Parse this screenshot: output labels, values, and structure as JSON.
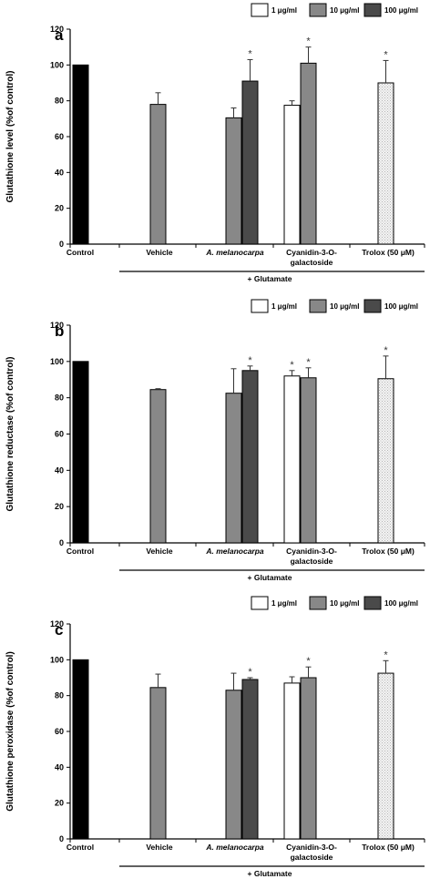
{
  "chart_data": [
    {
      "type": "bar",
      "panel_label": "a",
      "ylabel": "Glutathione level  (%of control)",
      "ylim": [
        0,
        120
      ],
      "yticks": [
        0,
        20,
        40,
        60,
        80,
        100,
        120
      ],
      "categories": [
        "Control",
        "Vehicle",
        "A. melanocarpa",
        "Cyanidin-3-O-galactoside",
        "Trolox (50 μM)"
      ],
      "category_labels": [
        [
          "Control"
        ],
        [
          "Vehicle"
        ],
        [
          "A. melanocarpa"
        ],
        [
          "Cyanidin-3-O-",
          "galactoside"
        ],
        [
          "Trolox (50 μM)"
        ]
      ],
      "group_label": "+ Glutamate",
      "legend": [
        "1 μg/ml",
        "10 μg/ml",
        "100 μg/ml"
      ],
      "legend_position": "top-right",
      "bars": [
        {
          "category": "Control",
          "style": "control",
          "value": 100,
          "error": 0,
          "significant": false
        },
        {
          "category": "Vehicle",
          "style": "10",
          "value": 78,
          "error": 6.5,
          "significant": false
        },
        {
          "category": "A. melanocarpa",
          "style": "10",
          "value": 70.5,
          "error": 5.5,
          "significant": false
        },
        {
          "category": "A. melanocarpa",
          "style": "100",
          "value": 91,
          "error": 12,
          "significant": true
        },
        {
          "category": "Cyanidin-3-O-galactoside",
          "style": "1",
          "value": 77.5,
          "error": 2.5,
          "significant": false
        },
        {
          "category": "Cyanidin-3-O-galactoside",
          "style": "10",
          "value": 101,
          "error": 9,
          "significant": true
        },
        {
          "category": "Trolox (50 μM)",
          "style": "trolox",
          "value": 90,
          "error": 12.5,
          "significant": true
        }
      ]
    },
    {
      "type": "bar",
      "panel_label": "b",
      "ylabel": "Glutathione reductase (%of control)",
      "ylim": [
        0,
        120
      ],
      "yticks": [
        0,
        20,
        40,
        60,
        80,
        100,
        120
      ],
      "categories": [
        "Control",
        "Vehicle",
        "A. melanocarpa",
        "Cyanidin-3-O-galactoside",
        "Trolox (50 μM)"
      ],
      "category_labels": [
        [
          "Control"
        ],
        [
          "Vehicle"
        ],
        [
          "A. melanocarpa"
        ],
        [
          "Cyanidin-3-O-",
          "galactoside"
        ],
        [
          "Trolox (50 μM)"
        ]
      ],
      "group_label": "+ Glutamate",
      "legend": [
        "1 μg/ml",
        "10 μg/ml",
        "100 μg/ml"
      ],
      "legend_position": "top-right",
      "bars": [
        {
          "category": "Control",
          "style": "control",
          "value": 100,
          "error": 0,
          "significant": false
        },
        {
          "category": "Vehicle",
          "style": "10",
          "value": 84.5,
          "error": 0.5,
          "significant": false
        },
        {
          "category": "A. melanocarpa",
          "style": "10",
          "value": 82.5,
          "error": 13.5,
          "significant": false
        },
        {
          "category": "A. melanocarpa",
          "style": "100",
          "value": 95,
          "error": 2.5,
          "significant": true
        },
        {
          "category": "Cyanidin-3-O-galactoside",
          "style": "1",
          "value": 92,
          "error": 3,
          "significant": true
        },
        {
          "category": "Cyanidin-3-O-galactoside",
          "style": "10",
          "value": 91,
          "error": 5.5,
          "significant": true
        },
        {
          "category": "Trolox (50 μM)",
          "style": "trolox",
          "value": 90.5,
          "error": 12.5,
          "significant": true
        }
      ]
    },
    {
      "type": "bar",
      "panel_label": "c",
      "ylabel": "Glutathione peroxidase (%of control)",
      "ylim": [
        0,
        120
      ],
      "yticks": [
        0,
        20,
        40,
        60,
        80,
        100,
        120
      ],
      "categories": [
        "Control",
        "Vehicle",
        "A. melanocarpa",
        "Cyanidin-3-O-galactoside",
        "Trolox (50 μM)"
      ],
      "category_labels": [
        [
          "Control"
        ],
        [
          "Vehicle"
        ],
        [
          "A. melanocarpa"
        ],
        [
          "Cyanidin-3-O-",
          "galactoside"
        ],
        [
          "Trolox (50 μM)"
        ]
      ],
      "group_label": "+ Glutamate",
      "legend": [
        "1 μg/ml",
        "10 μg/ml",
        "100 μg/ml"
      ],
      "legend_position": "top-right",
      "bars": [
        {
          "category": "Control",
          "style": "control",
          "value": 100,
          "error": 0,
          "significant": false
        },
        {
          "category": "Vehicle",
          "style": "10",
          "value": 84.5,
          "error": 7.5,
          "significant": false
        },
        {
          "category": "A. melanocarpa",
          "style": "10",
          "value": 83,
          "error": 9.5,
          "significant": false
        },
        {
          "category": "A. melanocarpa",
          "style": "100",
          "value": 89,
          "error": 1,
          "significant": true
        },
        {
          "category": "Cyanidin-3-O-galactoside",
          "style": "1",
          "value": 87,
          "error": 3.5,
          "significant": false
        },
        {
          "category": "Cyanidin-3-O-galactoside",
          "style": "10",
          "value": 90,
          "error": 6,
          "significant": true
        },
        {
          "category": "Trolox (50 μM)",
          "style": "trolox",
          "value": 92.5,
          "error": 7,
          "significant": true
        }
      ]
    }
  ],
  "colors": {
    "control": "#000000",
    "dose_1": "#ffffff",
    "dose_10": "#888888",
    "dose_100": "#4a4a4a",
    "trolox": "#f2f2f2",
    "axis": "#000000"
  }
}
